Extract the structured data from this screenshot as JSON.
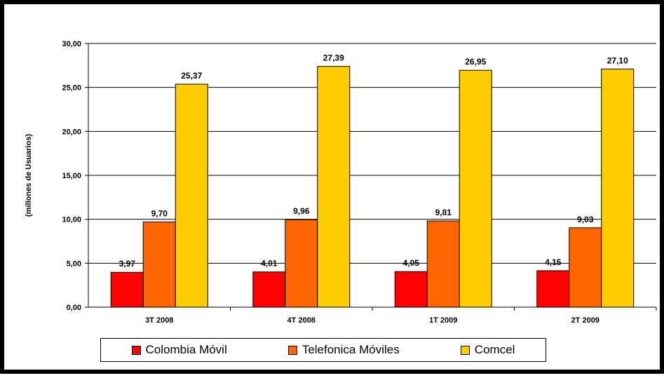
{
  "chart_data": {
    "type": "bar",
    "ylabel": "(millones de Usuarios)",
    "xlabel": "",
    "ylim": [
      0,
      30
    ],
    "yticks": [
      "0,00",
      "5,00",
      "10,00",
      "15,00",
      "20,00",
      "25,00",
      "30,00"
    ],
    "categories": [
      "3T 2008",
      "4T 2008",
      "1T 2009",
      "2T 2009"
    ],
    "grid": "horizontal",
    "legend_position": "bottom",
    "series": [
      {
        "name": "Colombia Móvil",
        "color": "#ff0000",
        "values": [
          3.97,
          4.01,
          4.05,
          4.15
        ],
        "labels": [
          "3,97",
          "4,01",
          "4,05",
          "4,15"
        ]
      },
      {
        "name": "Telefonica Móviles",
        "color": "#ff6600",
        "values": [
          9.7,
          9.96,
          9.81,
          9.03
        ],
        "labels": [
          "9,70",
          "9,96",
          "9,81",
          "9,03"
        ]
      },
      {
        "name": "Comcel",
        "color": "#ffcc00",
        "values": [
          25.37,
          27.39,
          26.95,
          27.1
        ],
        "labels": [
          "25,37",
          "27,39",
          "26,95",
          "27,10"
        ]
      }
    ]
  }
}
